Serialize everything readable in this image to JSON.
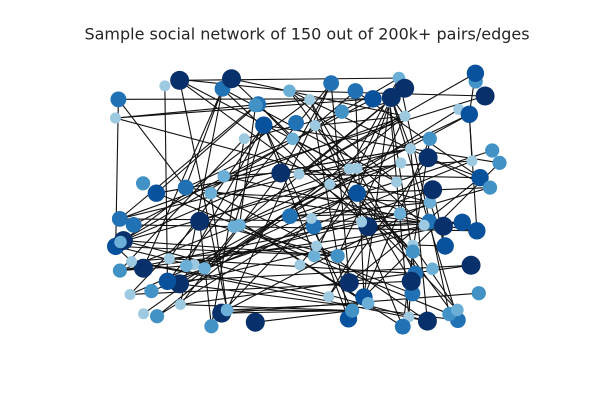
{
  "title": "Sample social network of 150 out of 200k+ pairs/edges"
}
